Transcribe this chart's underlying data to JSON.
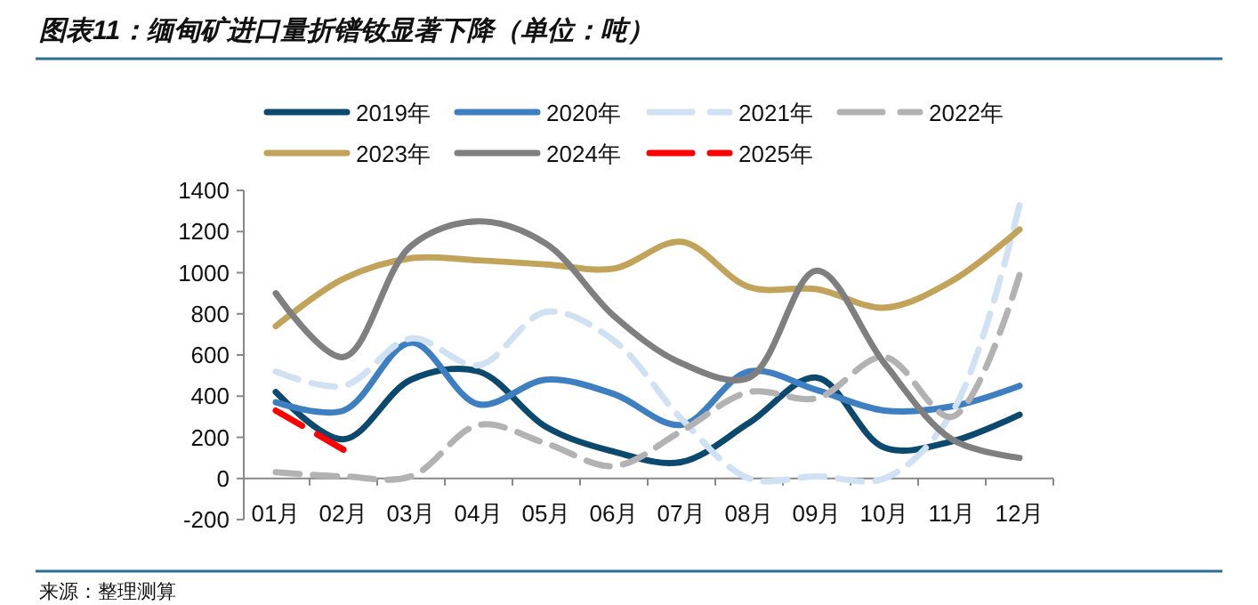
{
  "chart_data": {
    "type": "line",
    "title": "图表11：缅甸矿进口量折镨钕显著下降（单位：吨）",
    "categories": [
      "01月",
      "02月",
      "03月",
      "04月",
      "05月",
      "06月",
      "07月",
      "08月",
      "09月",
      "10月",
      "11月",
      "12月"
    ],
    "series": [
      {
        "name": "2019年",
        "color": "#0b4a6e",
        "line_style": "solid",
        "values": [
          420,
          190,
          480,
          520,
          250,
          130,
          80,
          270,
          490,
          150,
          180,
          310
        ]
      },
      {
        "name": "2020年",
        "color": "#3d7fc1",
        "line_style": "solid",
        "values": [
          370,
          330,
          660,
          360,
          480,
          410,
          260,
          520,
          430,
          330,
          350,
          450
        ]
      },
      {
        "name": "2021年",
        "color": "#cfe1f3",
        "line_style": "dashed",
        "values": [
          520,
          450,
          680,
          550,
          810,
          670,
          290,
          0,
          10,
          0,
          320,
          1330
        ]
      },
      {
        "name": "2022年",
        "color": "#b2b2b2",
        "line_style": "dashed",
        "values": [
          30,
          10,
          10,
          260,
          170,
          60,
          230,
          420,
          390,
          590,
          300,
          990
        ]
      },
      {
        "name": "2023年",
        "color": "#c2a35a",
        "line_style": "solid",
        "values": [
          740,
          970,
          1070,
          1060,
          1040,
          1020,
          1150,
          930,
          920,
          830,
          960,
          1210
        ]
      },
      {
        "name": "2024年",
        "color": "#7f7f7f",
        "line_style": "solid",
        "values": [
          900,
          590,
          1130,
          1250,
          1140,
          790,
          560,
          490,
          1010,
          560,
          190,
          100
        ]
      },
      {
        "name": "2025年",
        "color": "#ff0000",
        "line_style": "dashed",
        "values": [
          330,
          140,
          null,
          null,
          null,
          null,
          null,
          null,
          null,
          null,
          null,
          null
        ]
      }
    ],
    "ylim": [
      -200,
      1400
    ],
    "yticks": [
      -200,
      0,
      200,
      400,
      600,
      800,
      1000,
      1200,
      1400
    ],
    "legend": "top",
    "marker": "none",
    "annotations": [
      "来源：整理测算"
    ]
  }
}
